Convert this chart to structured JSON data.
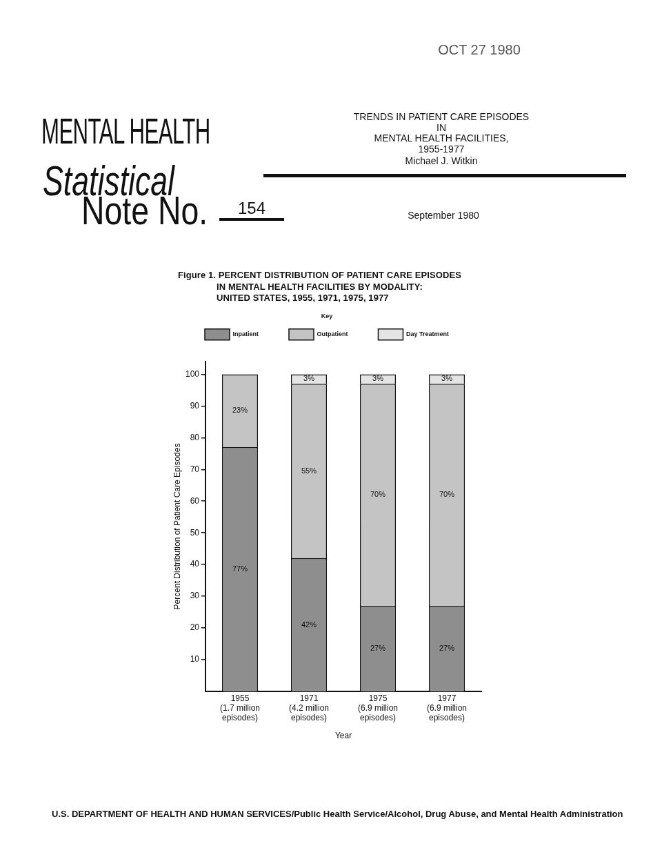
{
  "chart_data": {
    "type": "bar",
    "title": "Figure 1. PERCENT DISTRIBUTION OF PATIENT CARE EPISODES\nIN MENTAL HEALTH FACILITIES BY MODALITY:\nUNITED STATES, 1955, 1971, 1975, 1977",
    "categories": [
      "1955\n(1.7 million\nepisodes)",
      "1971\n(4.2 million\nepisodes)",
      "1975\n(6.9 million\nepisodes)",
      "1977\n(6.9 million\nepisodes)"
    ],
    "series": [
      {
        "name": "Inpatient",
        "color": "#8e8e8e",
        "values": [
          77,
          42,
          27,
          27
        ],
        "value_labels": [
          "77%",
          "42%",
          "27%",
          "27%"
        ]
      },
      {
        "name": "Outpatient",
        "color": "#c4c4c4",
        "values": [
          23,
          55,
          70,
          70
        ],
        "value_labels": [
          "23%",
          "55%",
          "70%",
          "70%"
        ]
      },
      {
        "name": "Day Treatment",
        "color": "#e4e4e4",
        "values": [
          null,
          3,
          3,
          3
        ],
        "value_labels": [
          null,
          "3%",
          "3%",
          "3%"
        ]
      }
    ],
    "stacked": true,
    "xlabel": "Year",
    "ylabel": "Percent Distribution of Patient Care Episodes",
    "ylim": [
      0,
      104
    ],
    "yticks": [
      10,
      20,
      30,
      40,
      50,
      60,
      70,
      80,
      90,
      100
    ],
    "legend": "top",
    "legend_title": "Key",
    "annotations": [
      "OCT 27 1980",
      "MENTAL HEALTH",
      "Statistical",
      "Note No.",
      "154",
      "TRENDS IN PATIENT CARE EPISODES\nIN\nMENTAL HEALTH FACILITIES,\n1955-1977",
      "Michael J. Witkin",
      "September 1980",
      "U.S. DEPARTMENT OF HEALTH AND HUMAN SERVICES/Public Health Service/Alcohol, Drug Abuse, and Mental Health Administration"
    ]
  }
}
